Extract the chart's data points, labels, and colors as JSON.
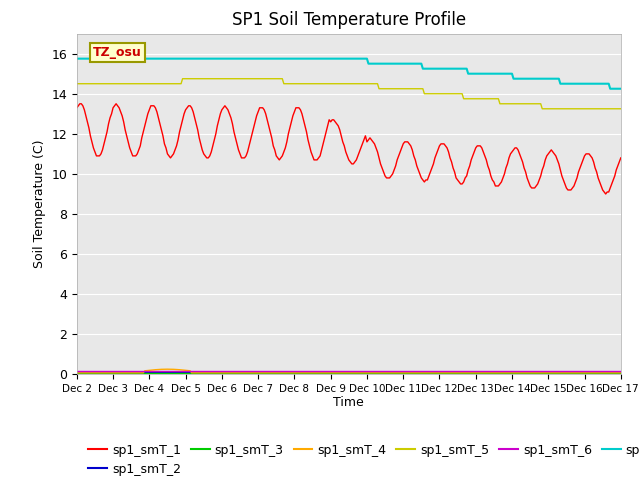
{
  "title": "SP1 Soil Temperature Profile",
  "xlabel": "Time",
  "ylabel": "Soil Temperature (C)",
  "annotation_text": "TZ_osu",
  "ylim": [
    0,
    17
  ],
  "yticks": [
    0,
    2,
    4,
    6,
    8,
    10,
    12,
    14,
    16
  ],
  "xtick_labels": [
    "Dec 2",
    "Dec 3",
    "Dec 4",
    "Dec 5",
    "Dec 6",
    "Dec 7",
    "Dec 8",
    "Dec 9",
    "Dec 10",
    "Dec 11",
    "Dec 12",
    "Dec 13",
    "Dec 14",
    "Dec 15",
    "Dec 16",
    "Dec 17"
  ],
  "series_colors": {
    "sp1_smT_1": "#ff0000",
    "sp1_smT_2": "#0000cc",
    "sp1_smT_3": "#00cc00",
    "sp1_smT_4": "#ffaa00",
    "sp1_smT_5": "#cccc00",
    "sp1_smT_6": "#cc00cc",
    "sp1_smT_7": "#00cccc"
  },
  "background_color": "#e8e8e8",
  "grid_color": "#ffffff",
  "legend_fontsize": 9,
  "title_fontsize": 12,
  "num_points": 720
}
